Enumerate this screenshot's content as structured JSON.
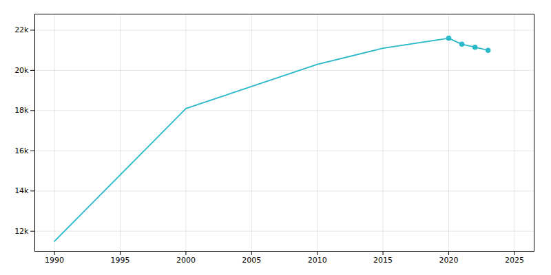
{
  "chart_data": {
    "type": "line",
    "x": [
      1990,
      2000,
      2010,
      2015,
      2020,
      2021,
      2022,
      2023
    ],
    "series": [
      {
        "type": "line",
        "color": "#29b8c8",
        "values": [
          11500,
          18100,
          20300,
          21100,
          21600,
          21300,
          21150,
          21000
        ]
      },
      {
        "type": "scatter",
        "marker": "circle",
        "color": "#29b8c8",
        "values": [
          null,
          null,
          null,
          null,
          21600,
          21300,
          21150,
          21000
        ]
      }
    ],
    "xlim": [
      1988.5,
      2026.5
    ],
    "xticks": [
      1990,
      1995,
      2000,
      2005,
      2010,
      2015,
      2020,
      2025
    ],
    "ylim": [
      11000,
      22800
    ],
    "yticks": [
      {
        "value": 12000,
        "label": "12k"
      },
      {
        "value": 14000,
        "label": "14k"
      },
      {
        "value": 16000,
        "label": "16k"
      },
      {
        "value": 18000,
        "label": "18k"
      },
      {
        "value": 20000,
        "label": "20k"
      },
      {
        "value": 22000,
        "label": "22k"
      }
    ],
    "grid": true
  }
}
